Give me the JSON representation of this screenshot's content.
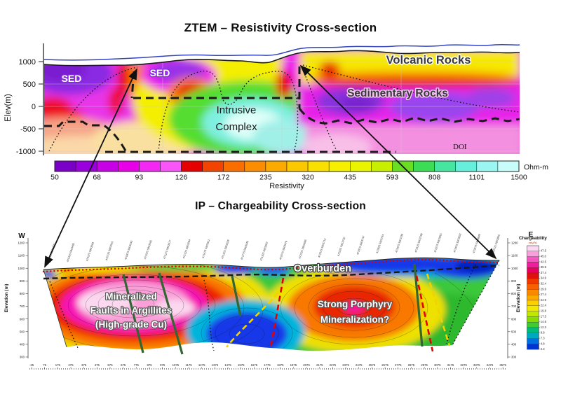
{
  "ztem": {
    "title": "ZTEM – Resistivity Cross-section",
    "elev_axis_label": "Elev(m)",
    "elev_ticks": [
      "1000",
      "500",
      "0",
      "-500",
      "-1000"
    ],
    "labels": {
      "sed_left": "SED",
      "sed_mid": "SED",
      "volcanic": "Volcanic Rocks",
      "sedimentary": "Sedimentary Rocks",
      "intrusive_1": "Intrusive",
      "intrusive_2": "Complex",
      "doi": "DOI"
    },
    "colorbar": {
      "unit": "Ohm-m",
      "axis_label": "Resistivity",
      "ticks": [
        "50",
        "68",
        "93",
        "126",
        "172",
        "235",
        "320",
        "435",
        "593",
        "808",
        "1101",
        "1500"
      ],
      "colors": [
        "#7a00c8",
        "#9900dd",
        "#c800e6",
        "#e800e8",
        "#f428f4",
        "#fa55fa",
        "#e60000",
        "#f24400",
        "#fa6e00",
        "#fc8c00",
        "#fcaa00",
        "#fcc800",
        "#fae000",
        "#f6f000",
        "#eaf400",
        "#c8ee00",
        "#6ade22",
        "#3cdc55",
        "#46e6a0",
        "#66f0dc",
        "#9af6f0",
        "#c8fcfa"
      ]
    }
  },
  "ip": {
    "title": "IP – Chargeability Cross-section",
    "west": "W",
    "east": "E",
    "elev_axis_label": "Elevation (m)",
    "elev_ticks": [
      "1200",
      "1100",
      "1000",
      "900",
      "800",
      "700",
      "600",
      "500",
      "400",
      "300"
    ],
    "x_ticks": [
      "-25",
      "75",
      "175",
      "275",
      "375",
      "475",
      "575",
      "675",
      "775",
      "875",
      "975",
      "1075",
      "1175",
      "1275",
      "1375",
      "1475",
      "1575",
      "1675",
      "1775",
      "1875",
      "1975",
      "2075",
      "2175",
      "2275",
      "2375",
      "2475",
      "2575",
      "2675",
      "2775",
      "2875",
      "2975",
      "3075",
      "3175",
      "3275",
      "3375",
      "3475",
      "3575"
    ],
    "stations": [
      "470275 5903475",
      "470425 5903492",
      "470575 5903509",
      "470725 5903526",
      "470875 5903543",
      "471025 5903560",
      "471175 5903577",
      "471325 5903594",
      "471475 5903611",
      "471625 5903628",
      "471775 5903645",
      "471925 5903662",
      "472075 5903679",
      "472225 5903696",
      "472375 5903713",
      "472525 5903730",
      "472675 5903747",
      "472825 5903764",
      "472975 5903781",
      "473125 5903798",
      "473275 5903815",
      "473425 5903832",
      "473575 5903849",
      "473725 5903866"
    ],
    "annotations": {
      "overburden": "Overburden",
      "mineralized_1": "Mineralized",
      "mineralized_2": "Faults in Argillites",
      "mineralized_3": "(High-grade Cu)",
      "porphyry_1": "Strong Porphyry",
      "porphyry_2": "Mineralization?"
    },
    "legend": {
      "title": "Chargeability",
      "unit": "mV/V",
      "values": [
        "47.5",
        "45.0",
        "42.5",
        "39.9",
        "37.4",
        "34.9",
        "32.4",
        "29.9",
        "27.4",
        "24.9",
        "22.4",
        "19.8",
        "17.3",
        "14.8",
        "12.3",
        "9.8",
        "7.3",
        "4.8",
        "2.3"
      ],
      "colors": [
        "#fbd7f2",
        "#f9a0dc",
        "#f458c0",
        "#ee1e9e",
        "#e80060",
        "#e01010",
        "#ee3800",
        "#f66000",
        "#fa8800",
        "#fcaa00",
        "#fcd000",
        "#f0e800",
        "#c0e800",
        "#88dc00",
        "#40cc30",
        "#00bc78",
        "#00a8c0",
        "#0070e0",
        "#0034d0"
      ]
    }
  },
  "chart_data": [
    {
      "type": "heatmap",
      "title": "ZTEM – Resistivity Cross-section",
      "ylabel": "Elev(m)",
      "y_ticks": [
        1000,
        500,
        0,
        -500,
        -1000
      ],
      "colorbar_label": "Resistivity",
      "colorbar_unit": "Ohm-m",
      "colorbar_ticks": [
        50,
        68,
        93,
        126,
        172,
        235,
        320,
        435,
        593,
        808,
        1101,
        1500
      ],
      "colorbar_scale": "log",
      "zones": [
        {
          "label": "SED",
          "value": "low resistivity (~50-120 Ohm-m)",
          "location": "upper left and upper middle, purple-magenta"
        },
        {
          "label": "Volcanic Rocks",
          "value": "moderate resistivity (~300-500 Ohm-m)",
          "location": "upper right, yellow band under surface"
        },
        {
          "label": "Sedimentary Rocks",
          "value": "low resistivity (~90-130 Ohm-m)",
          "location": "right-center, magenta-purple"
        },
        {
          "label": "Intrusive Complex",
          "value": "high resistivity (~600-1500 Ohm-m)",
          "location": "center, green-cyan core outlined by black dashed boundary"
        },
        {
          "label": "DOI",
          "value": "depth-of-investigation marker",
          "location": "lower right, dashed wavy line"
        }
      ]
    },
    {
      "type": "heatmap",
      "title": "IP – Chargeability Cross-section",
      "x_ticks_range": [
        -25,
        3575
      ],
      "x_tick_step": 100,
      "ylabel": "Elevation (m)",
      "y_ticks": [
        1200,
        1100,
        1000,
        900,
        800,
        700,
        600,
        500,
        400,
        300
      ],
      "orientation": {
        "left": "W",
        "right": "E"
      },
      "legend_label": "Chargeability",
      "legend_unit": "mV/V",
      "legend_ticks": [
        47.5,
        45.0,
        42.5,
        39.9,
        37.4,
        34.9,
        32.4,
        29.9,
        27.4,
        24.9,
        22.4,
        19.8,
        17.3,
        14.8,
        12.3,
        9.8,
        7.3,
        4.8,
        2.3
      ],
      "anomalies": [
        {
          "label": "Mineralized Faults in Argillites (High-grade Cu)",
          "value": "very high chargeability (>45 mV/V), pink core",
          "location": "west side, cut by dark-green fault lines"
        },
        {
          "label": "Strong Porphyry Mineralization?",
          "value": "high chargeability (~35-45 mV/V), red-orange core",
          "location": "east-central, bounded by red/yellow dashed faults"
        },
        {
          "label": "Overburden",
          "value": "low chargeability (<10 mV/V), blue",
          "location": "thin layer along surface below red dotted topography line, black dashed base"
        }
      ]
    }
  ]
}
